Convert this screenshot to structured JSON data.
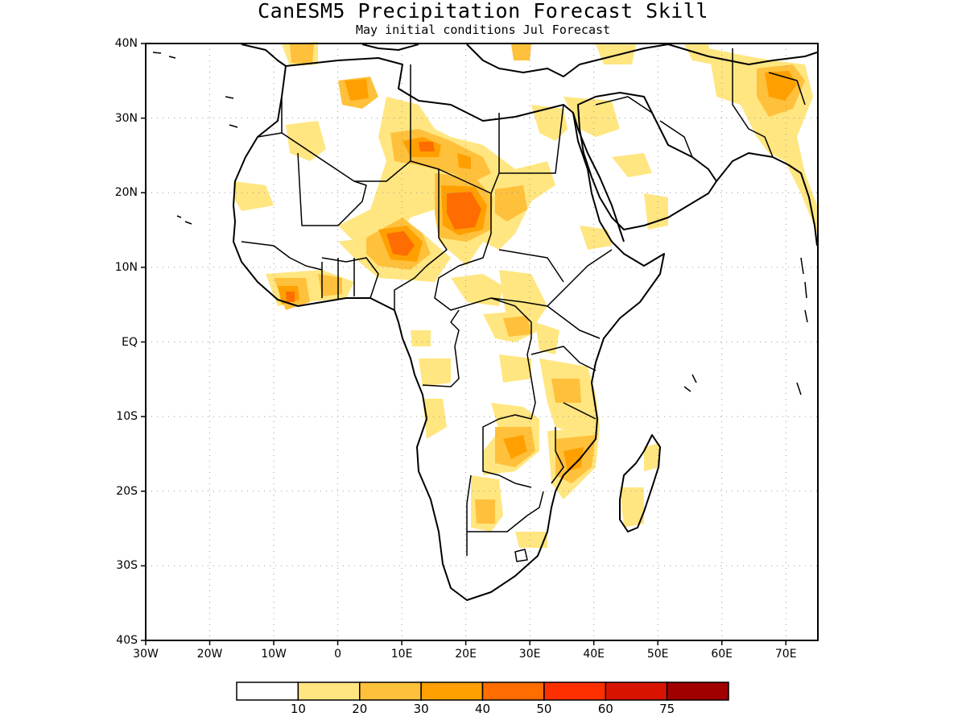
{
  "header": {
    "title": "CanESM5 Precipitation Forecast Skill",
    "subtitle": "May initial conditions  Jul Forecast"
  },
  "axes": {
    "y_labels": [
      "40N",
      "30N",
      "20N",
      "10N",
      "EQ",
      "10S",
      "20S",
      "30S",
      "40S"
    ],
    "x_labels": [
      "30W",
      "20W",
      "10W",
      "0",
      "10E",
      "20E",
      "30E",
      "40E",
      "50E",
      "60E",
      "70E"
    ],
    "lon_range": [
      -30,
      75
    ],
    "lat_range": [
      -40,
      40
    ],
    "grid": "dotted"
  },
  "colorbar": {
    "labels": [
      "10",
      "20",
      "30",
      "40",
      "50",
      "60",
      "75"
    ],
    "colors": [
      "#ffffff",
      "#ffe680",
      "#ffc03c",
      "#ffa000",
      "#ff6c00",
      "#ff3000",
      "#d81400",
      "#a00000"
    ]
  }
}
